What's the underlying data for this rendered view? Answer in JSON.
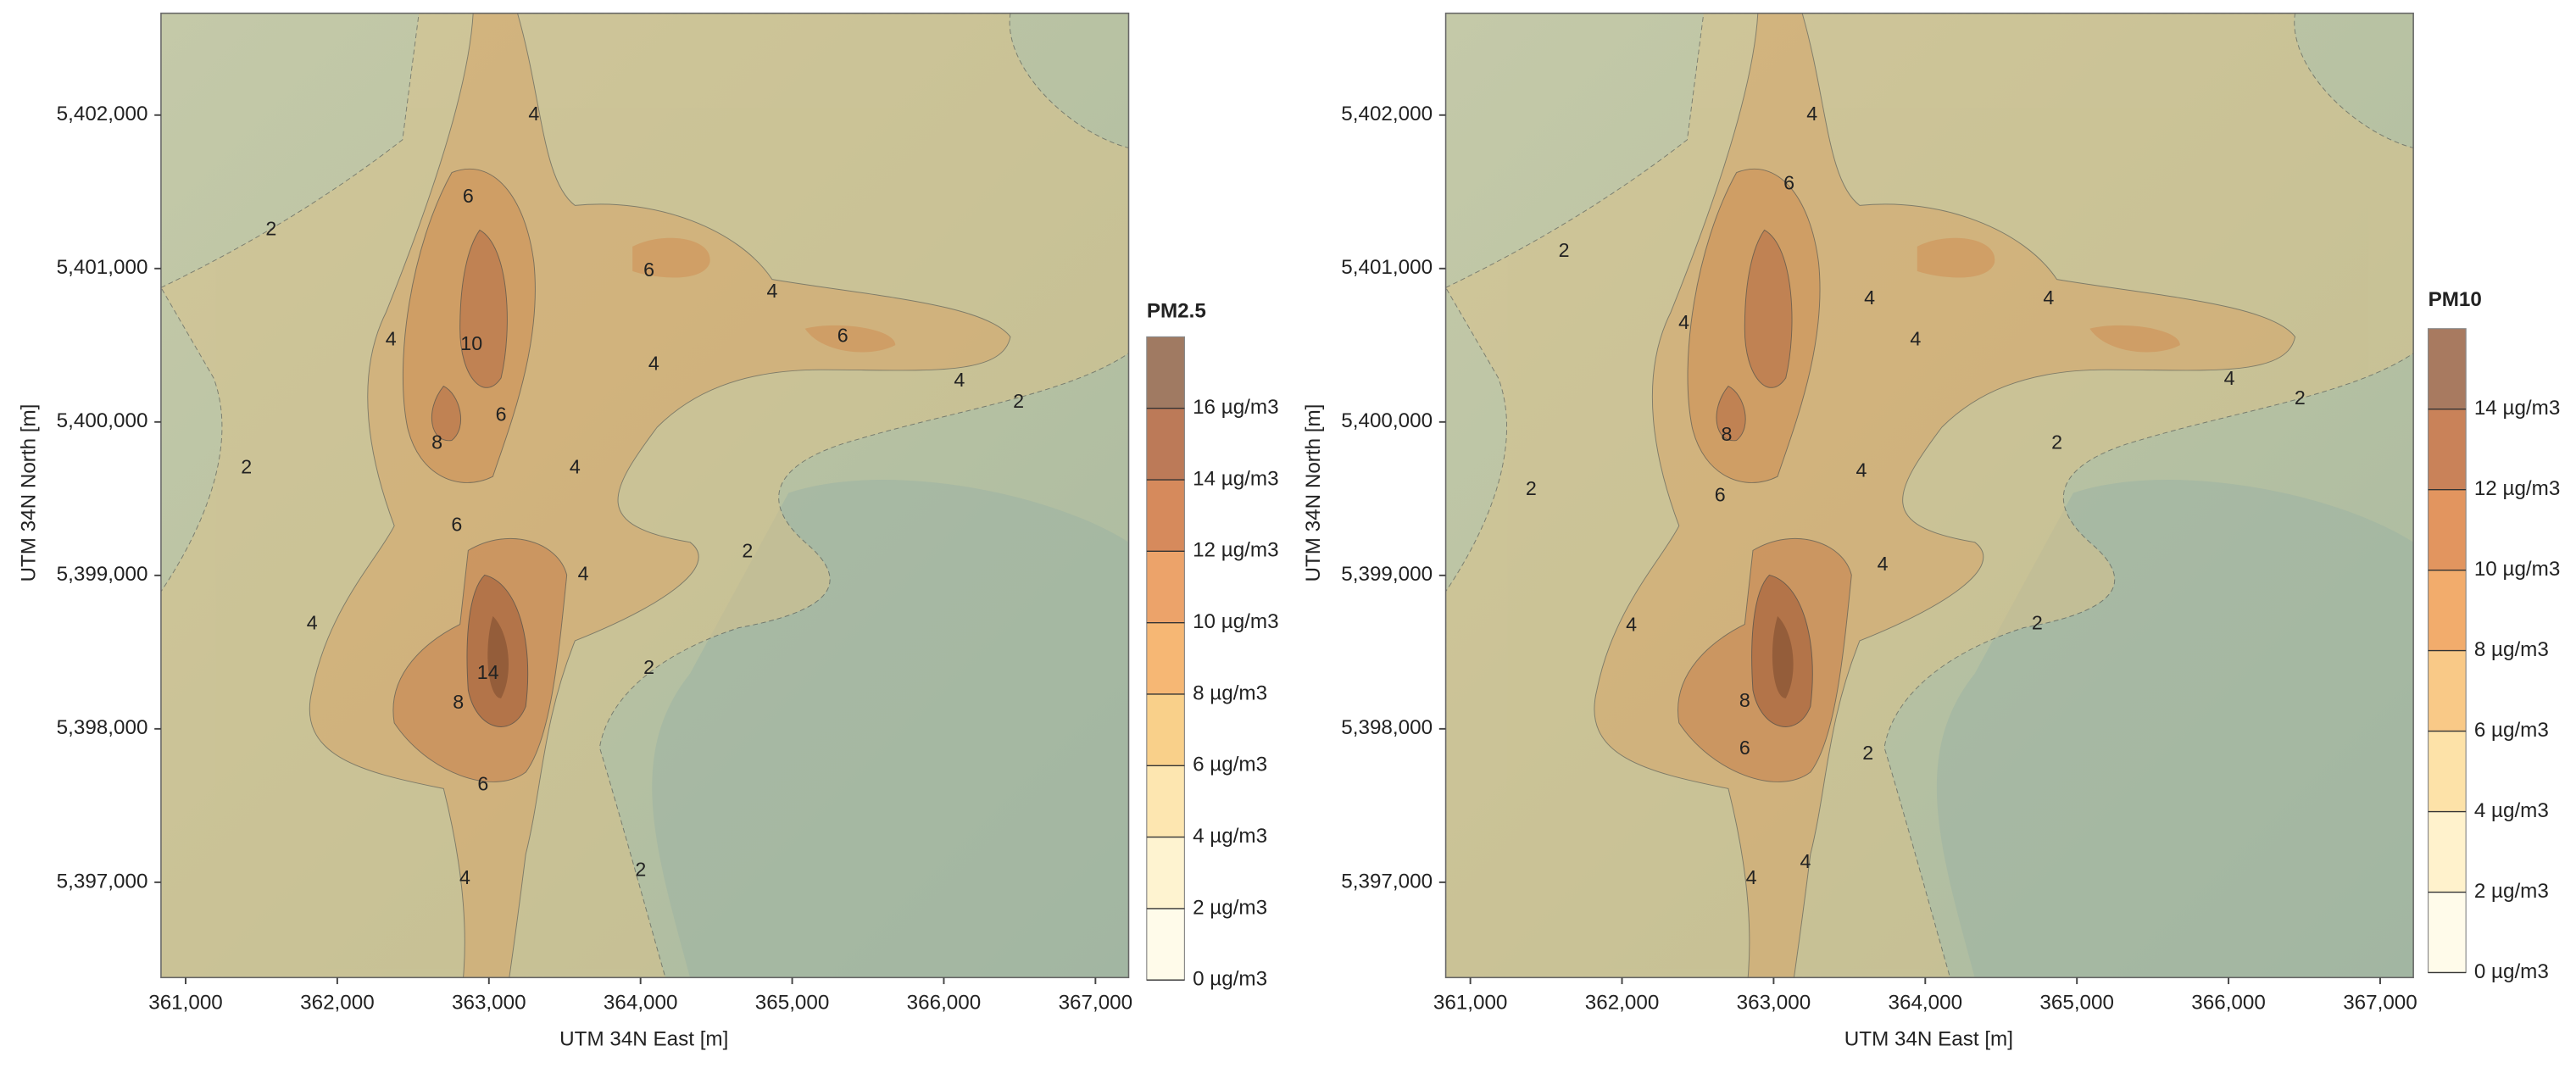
{
  "panels": [
    {
      "legend_title": "PM2.5",
      "x_label": "UTM 34N East [m]",
      "y_label": "UTM 34N North [m]",
      "xticks": [
        "361,000",
        "362,000",
        "363,000",
        "364,000",
        "365,000",
        "366,000",
        "367,000"
      ],
      "yticks": [
        "5,402,000",
        "5,401,000",
        "5,400,000",
        "5,399,000",
        "5,398,000",
        "5,397,000"
      ],
      "legend_labels": [
        "16 µg/m3",
        "14 µg/m3",
        "12 µg/m3",
        "10 µg/m3",
        "8 µg/m3",
        "6 µg/m3",
        "4 µg/m3",
        "2 µg/m3",
        "0 µg/m3"
      ],
      "contour_labels": [
        "4",
        "6",
        "2",
        "6",
        "4",
        "4",
        "10",
        "6",
        "4",
        "2",
        "4",
        "6",
        "8",
        "2",
        "4",
        "6",
        "2",
        "4",
        "4",
        "14",
        "8",
        "2",
        "6",
        "4",
        "2"
      ]
    },
    {
      "legend_title": "PM10",
      "x_label": "UTM 34N East [m]",
      "y_label": "UTM 34N North [m]",
      "xticks": [
        "361,000",
        "362,000",
        "363,000",
        "364,000",
        "365,000",
        "366,000",
        "367,000"
      ],
      "yticks": [
        "5,402,000",
        "5,401,000",
        "5,400,000",
        "5,399,000",
        "5,398,000",
        "5,397,000"
      ],
      "legend_labels": [
        "14 µg/m3",
        "12 µg/m3",
        "10 µg/m3",
        "8 µg/m3",
        "6 µg/m3",
        "4 µg/m3",
        "2 µg/m3",
        "0 µg/m3"
      ],
      "contour_labels": [
        "4",
        "6",
        "2",
        "4",
        "4",
        "4",
        "4",
        "4",
        "2",
        "2",
        "8",
        "2",
        "4",
        "6",
        "4",
        "2",
        "4",
        "8",
        "6",
        "2",
        "4",
        "4"
      ]
    }
  ]
}
